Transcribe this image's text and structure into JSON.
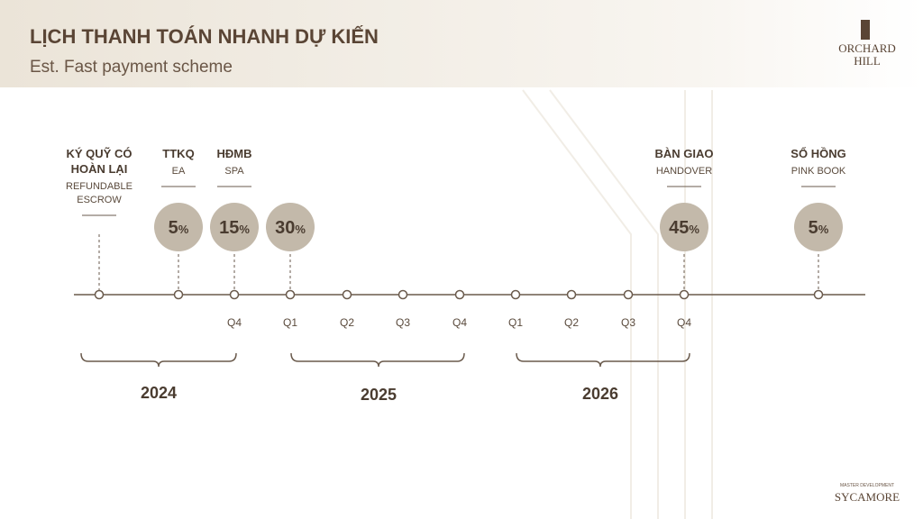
{
  "header": {
    "title": "LỊCH THANH TOÁN NHANH DỰ KIẾN",
    "subtitle": "Est. Fast payment scheme"
  },
  "logo": {
    "lines": [
      "ORCHARD",
      "HILL"
    ]
  },
  "milestones": [
    {
      "title": [
        "KÝ QUỸ CÓ",
        "HOÀN LẠI"
      ],
      "subtitle": [
        "REFUNDABLE",
        "ESCROW"
      ]
    },
    {
      "title": [
        "TTKQ"
      ],
      "subtitle": [
        "EA"
      ],
      "percent": {
        "number": "5",
        "unit": "%"
      }
    },
    {
      "title": [
        "HĐMB"
      ],
      "subtitle": [
        "SPA"
      ],
      "percent": {
        "number": "15",
        "unit": "%"
      }
    },
    {
      "percent": {
        "number": "30",
        "unit": "%"
      }
    },
    {
      "title": [
        "BÀN GIAO"
      ],
      "subtitle": [
        "HANDOVER"
      ],
      "percent": {
        "number": "45",
        "unit": "%"
      }
    },
    {
      "title": [
        "SỔ HỒNG"
      ],
      "subtitle": [
        "PINK BOOK"
      ],
      "percent": {
        "number": "5",
        "unit": "%"
      }
    }
  ],
  "quarters": [
    "Q4",
    "Q1",
    "Q2",
    "Q3",
    "Q4",
    "Q1",
    "Q2",
    "Q3",
    "Q4"
  ],
  "years": [
    "2024",
    "2025",
    "2026"
  ],
  "footer": {
    "developer_label": "MASTER DEVELOPMENT",
    "developer": "SYCAMORE"
  }
}
